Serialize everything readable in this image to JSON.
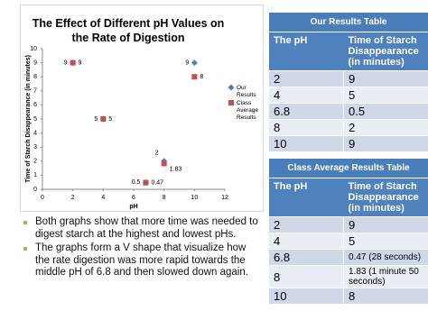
{
  "chart_data": {
    "type": "scatter",
    "title": "The Effect of Different pH Values on the Rate of Digestion",
    "x_label": "pH",
    "y_label": "Time of Starch Disappearance (in minutes)",
    "xlim": [
      0,
      12
    ],
    "xticks": [
      0,
      2,
      4,
      6,
      8,
      10,
      12
    ],
    "ylim": [
      0,
      10
    ],
    "yticks": [
      0,
      1,
      2,
      3,
      4,
      5,
      6,
      7,
      8,
      9,
      10
    ],
    "grid": false,
    "legend": "right",
    "series": [
      {
        "name": "Our Results",
        "color": "#4f81bd",
        "marker": "diamond",
        "x": [
          2,
          4,
          6.8,
          8,
          10
        ],
        "values": [
          9,
          5,
          0.5,
          2,
          9
        ]
      },
      {
        "name": "Class Average Results",
        "color": "#c0504d",
        "marker": "square",
        "x": [
          2,
          4,
          6.8,
          8,
          10
        ],
        "values": [
          9,
          5,
          0.47,
          1.83,
          8
        ]
      }
    ]
  },
  "tables": [
    {
      "title": "Our Results Table",
      "columns": [
        "The pH",
        "Time of Starch Disappearance (in minutes)"
      ],
      "rows": [
        [
          "2",
          "9"
        ],
        [
          "4",
          "5"
        ],
        [
          "6.8",
          "0.5"
        ],
        [
          "8",
          "2"
        ],
        [
          "10",
          "9"
        ]
      ]
    },
    {
      "title": "Class Average Results Table",
      "columns": [
        "The pH",
        "Time of Starch Disappearance (in minutes)"
      ],
      "rows": [
        [
          "2",
          "9"
        ],
        [
          "4",
          "5"
        ],
        [
          "6.8",
          "0.47 (28 seconds)"
        ],
        [
          "8",
          "1.83 (1 minute 50 seconds)"
        ],
        [
          "10",
          "8"
        ]
      ]
    }
  ],
  "bullets": [
    "Both graphs show that more time was needed to digest starch at the highest and lowest pHs.",
    "The graphs form a V shape that visualize how the rate digestion was more rapid towards the middle pH of 6.8 and then slowed down again."
  ]
}
